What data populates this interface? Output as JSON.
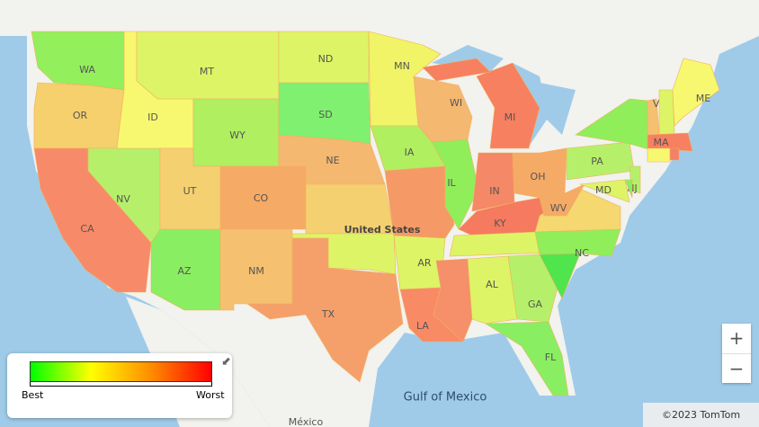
{
  "map": {
    "places": {
      "country": "United States",
      "sea": "Gulf of Mexico",
      "neighbor": "México"
    },
    "states": [
      {
        "label": "WA",
        "color": "#93ef5c"
      },
      {
        "label": "OR",
        "color": "#f5d06c"
      },
      {
        "label": "CA",
        "color": "#f78a68"
      },
      {
        "label": "NV",
        "color": "#b6f06a"
      },
      {
        "label": "ID",
        "color": "#f8f870"
      },
      {
        "label": "MT",
        "color": "#ddf466"
      },
      {
        "label": "WY",
        "color": "#b0ef60"
      },
      {
        "label": "UT",
        "color": "#f5d070"
      },
      {
        "label": "AZ",
        "color": "#8aee62"
      },
      {
        "label": "CO",
        "color": "#f5aa66"
      },
      {
        "label": "NM",
        "color": "#f5c070"
      },
      {
        "label": "ND",
        "color": "#ddf466"
      },
      {
        "label": "SD",
        "color": "#80f070"
      },
      {
        "label": "NE",
        "color": "#f5b870"
      },
      {
        "color": "#f5d070"
      },
      {
        "color": "#ddf466"
      },
      {
        "label": "TX",
        "color": "#f5a06a"
      },
      {
        "label": "MN",
        "color": "#f0f466"
      },
      {
        "label": "IA",
        "color": "#b0ef60"
      },
      {
        "color": "#f59a66"
      },
      {
        "label": "AR",
        "color": "#ddf466"
      },
      {
        "label": "LA",
        "color": "#f88a66"
      },
      {
        "label": "WI",
        "color": "#f5b870"
      },
      {
        "label": "IL",
        "color": "#90ee5a"
      },
      {
        "label": "MI",
        "color": "#f78060"
      },
      {
        "color": "#f78060"
      },
      {
        "label": "IN",
        "color": "#f58866"
      },
      {
        "label": "OH",
        "color": "#f5aa66"
      },
      {
        "label": "KY",
        "color": "#f57a60"
      },
      {
        "color": "#ddf466"
      },
      {
        "color": "#f5906a"
      },
      {
        "label": "AL",
        "color": "#ddf466"
      },
      {
        "label": "GA",
        "color": "#b6f06a"
      },
      {
        "label": "FL",
        "color": "#8aee62"
      },
      {
        "color": "#50e54c"
      },
      {
        "label": "NC",
        "color": "#90ee5a"
      },
      {
        "color": "#f5d870"
      },
      {
        "label": "WV",
        "color": "#f5aa66"
      },
      {
        "label": "PA",
        "color": "#b6f06a"
      },
      {
        "color": "#90ee5a"
      },
      {
        "label": "VT",
        "color": "#f5c070"
      },
      {
        "color": "#ddf466"
      },
      {
        "label": "ME",
        "color": "#f8f870"
      },
      {
        "label": "MA",
        "color": "#f78060"
      },
      {
        "color": "#f8f870"
      },
      {
        "color": "#f58066"
      },
      {
        "label": "NJ",
        "color": "#b6f06a"
      },
      {
        "label": "MD",
        "color": "#ddf466"
      },
      {
        "color": "#8aee62"
      }
    ],
    "legend": {
      "low": "Best",
      "high": "Worst",
      "colors": [
        "#00ff00",
        "#ffff00",
        "#ff8c00",
        "#ff0000"
      ]
    },
    "zoom_in": "+",
    "zoom_out": "−",
    "attribution": "©2023 TomTom"
  }
}
